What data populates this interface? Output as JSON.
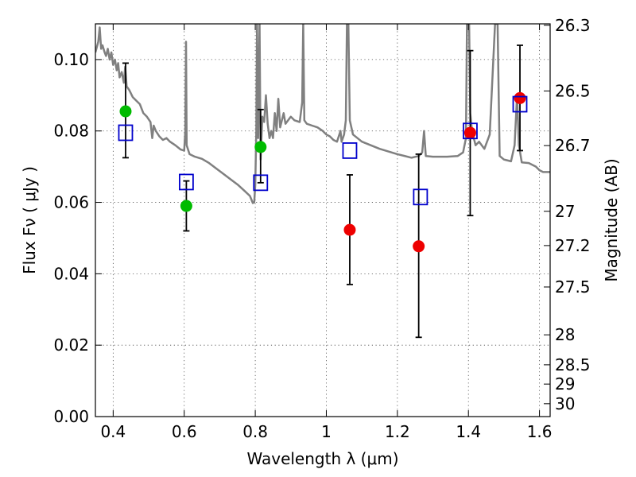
{
  "chart_data": {
    "type": "scatter",
    "title": "",
    "xlabel": "Wavelength  λ (μm)",
    "ylabel": "Flux  Fν  ( μJy )",
    "ylabel_right": "Magnitude (AB)",
    "xlim": [
      0.35,
      1.63
    ],
    "ylim": [
      0.0,
      0.11
    ],
    "grid": true,
    "x_ticks": [
      0.4,
      0.6,
      0.8,
      1.0,
      1.2,
      1.4,
      1.6
    ],
    "x_tick_labels": [
      "0.4",
      "0.6",
      "0.8",
      "1",
      "1.2",
      "1.4",
      "1.6"
    ],
    "y_ticks": [
      0.0,
      0.02,
      0.04,
      0.06,
      0.08,
      0.1
    ],
    "y_tick_labels": [
      "0.00",
      "0.02",
      "0.04",
      "0.06",
      "0.08",
      "0.10"
    ],
    "right_ticks": [
      {
        "label": "26.3",
        "flux": 0.1096
      },
      {
        "label": "26.5",
        "flux": 0.0912
      },
      {
        "label": "26.7",
        "flux": 0.0759
      },
      {
        "label": "27",
        "flux": 0.0575
      },
      {
        "label": "27.2",
        "flux": 0.0479
      },
      {
        "label": "27.5",
        "flux": 0.0363
      },
      {
        "label": "28",
        "flux": 0.0229
      },
      {
        "label": "28.5",
        "flux": 0.0145
      },
      {
        "label": "29",
        "flux": 0.0091
      },
      {
        "label": "30",
        "flux": 0.0036
      }
    ],
    "colors": {
      "spectrum": "#808080",
      "green": "#00bb00",
      "red": "#ee0000",
      "model": "#0000cc",
      "errorbar": "#000000"
    },
    "spectrum": {
      "name": "",
      "points": [
        [
          0.35,
          0.102
        ],
        [
          0.358,
          0.105
        ],
        [
          0.362,
          0.109
        ],
        [
          0.366,
          0.103
        ],
        [
          0.37,
          0.104
        ],
        [
          0.376,
          0.102
        ],
        [
          0.38,
          0.101
        ],
        [
          0.385,
          0.103
        ],
        [
          0.39,
          0.1
        ],
        [
          0.395,
          0.102
        ],
        [
          0.4,
          0.0985
        ],
        [
          0.405,
          0.1
        ],
        [
          0.41,
          0.097
        ],
        [
          0.414,
          0.099
        ],
        [
          0.418,
          0.095
        ],
        [
          0.424,
          0.0965
        ],
        [
          0.43,
          0.0935
        ],
        [
          0.434,
          0.098
        ],
        [
          0.438,
          0.0925
        ],
        [
          0.445,
          0.0915
        ],
        [
          0.455,
          0.0895
        ],
        [
          0.465,
          0.0885
        ],
        [
          0.475,
          0.0875
        ],
        [
          0.485,
          0.085
        ],
        [
          0.495,
          0.084
        ],
        [
          0.505,
          0.0825
        ],
        [
          0.51,
          0.078
        ],
        [
          0.514,
          0.0815
        ],
        [
          0.52,
          0.08
        ],
        [
          0.53,
          0.0785
        ],
        [
          0.54,
          0.0775
        ],
        [
          0.55,
          0.078
        ],
        [
          0.56,
          0.077
        ],
        [
          0.575,
          0.076
        ],
        [
          0.59,
          0.0748
        ],
        [
          0.6,
          0.0745
        ],
        [
          0.603,
          0.08
        ],
        [
          0.605,
          0.105
        ],
        [
          0.607,
          0.076
        ],
        [
          0.615,
          0.0735
        ],
        [
          0.63,
          0.0728
        ],
        [
          0.65,
          0.0722
        ],
        [
          0.67,
          0.071
        ],
        [
          0.69,
          0.0695
        ],
        [
          0.71,
          0.068
        ],
        [
          0.73,
          0.0665
        ],
        [
          0.75,
          0.065
        ],
        [
          0.77,
          0.0632
        ],
        [
          0.785,
          0.0618
        ],
        [
          0.793,
          0.0598
        ],
        [
          0.797,
          0.06
        ],
        [
          0.8,
          0.065
        ],
        [
          0.803,
          0.08
        ],
        [
          0.805,
          0.11
        ],
        [
          0.808,
          0.078
        ],
        [
          0.812,
          0.11
        ],
        [
          0.815,
          0.072
        ],
        [
          0.82,
          0.084
        ],
        [
          0.825,
          0.0825
        ],
        [
          0.83,
          0.09
        ],
        [
          0.835,
          0.082
        ],
        [
          0.84,
          0.078
        ],
        [
          0.845,
          0.08
        ],
        [
          0.85,
          0.078
        ],
        [
          0.855,
          0.085
        ],
        [
          0.86,
          0.08
        ],
        [
          0.865,
          0.089
        ],
        [
          0.87,
          0.081
        ],
        [
          0.88,
          0.085
        ],
        [
          0.885,
          0.082
        ],
        [
          0.9,
          0.084
        ],
        [
          0.91,
          0.083
        ],
        [
          0.925,
          0.0825
        ],
        [
          0.932,
          0.088
        ],
        [
          0.935,
          0.11
        ],
        [
          0.938,
          0.083
        ],
        [
          0.945,
          0.082
        ],
        [
          0.96,
          0.0815
        ],
        [
          0.975,
          0.081
        ],
        [
          0.99,
          0.08
        ],
        [
          1.0,
          0.079
        ],
        [
          1.01,
          0.0785
        ],
        [
          1.02,
          0.0775
        ],
        [
          1.03,
          0.077
        ],
        [
          1.04,
          0.08
        ],
        [
          1.043,
          0.077
        ],
        [
          1.05,
          0.079
        ],
        [
          1.055,
          0.083
        ],
        [
          1.058,
          0.11
        ],
        [
          1.062,
          0.11
        ],
        [
          1.066,
          0.083
        ],
        [
          1.075,
          0.079
        ],
        [
          1.1,
          0.077
        ],
        [
          1.15,
          0.075
        ],
        [
          1.2,
          0.0735
        ],
        [
          1.24,
          0.0725
        ],
        [
          1.26,
          0.073
        ],
        [
          1.27,
          0.074
        ],
        [
          1.275,
          0.08
        ],
        [
          1.28,
          0.073
        ],
        [
          1.3,
          0.0728
        ],
        [
          1.34,
          0.0728
        ],
        [
          1.37,
          0.073
        ],
        [
          1.385,
          0.074
        ],
        [
          1.393,
          0.078
        ],
        [
          1.396,
          0.11
        ],
        [
          1.402,
          0.11
        ],
        [
          1.405,
          0.085
        ],
        [
          1.41,
          0.08
        ],
        [
          1.42,
          0.076
        ],
        [
          1.43,
          0.077
        ],
        [
          1.445,
          0.075
        ],
        [
          1.46,
          0.079
        ],
        [
          1.475,
          0.11
        ],
        [
          1.482,
          0.11
        ],
        [
          1.488,
          0.073
        ],
        [
          1.5,
          0.072
        ],
        [
          1.52,
          0.0715
        ],
        [
          1.53,
          0.076
        ],
        [
          1.537,
          0.09
        ],
        [
          1.542,
          0.076
        ],
        [
          1.55,
          0.0712
        ],
        [
          1.57,
          0.071
        ],
        [
          1.59,
          0.07
        ],
        [
          1.6,
          0.069
        ],
        [
          1.61,
          0.0685
        ],
        [
          1.63,
          0.0685
        ]
      ]
    },
    "series": [
      {
        "name": "",
        "marker": "circle",
        "color": "green",
        "points": [
          {
            "x": 0.435,
            "y": 0.0855,
            "err_low": 0.0725,
            "err_high": 0.099
          },
          {
            "x": 0.606,
            "y": 0.059,
            "err_low": 0.052,
            "err_high": 0.066
          },
          {
            "x": 0.815,
            "y": 0.0755,
            "err_low": 0.0655,
            "err_high": 0.086
          }
        ]
      },
      {
        "name": "",
        "marker": "circle",
        "color": "red",
        "points": [
          {
            "x": 1.066,
            "y": 0.0523,
            "err_low": 0.037,
            "err_high": 0.0677
          },
          {
            "x": 1.26,
            "y": 0.0477,
            "err_low": 0.0222,
            "err_high": 0.0735
          },
          {
            "x": 1.405,
            "y": 0.0795,
            "err_low": 0.0563,
            "err_high": 0.1025
          },
          {
            "x": 1.545,
            "y": 0.0892,
            "err_low": 0.0745,
            "err_high": 0.104
          }
        ]
      },
      {
        "name": "",
        "marker": "square",
        "color": "model",
        "points": [
          {
            "x": 0.435,
            "y": 0.0795
          },
          {
            "x": 0.606,
            "y": 0.0657
          },
          {
            "x": 0.815,
            "y": 0.0655
          },
          {
            "x": 1.066,
            "y": 0.0745
          },
          {
            "x": 1.265,
            "y": 0.0615
          },
          {
            "x": 1.405,
            "y": 0.08
          },
          {
            "x": 1.545,
            "y": 0.0875
          }
        ]
      }
    ]
  }
}
